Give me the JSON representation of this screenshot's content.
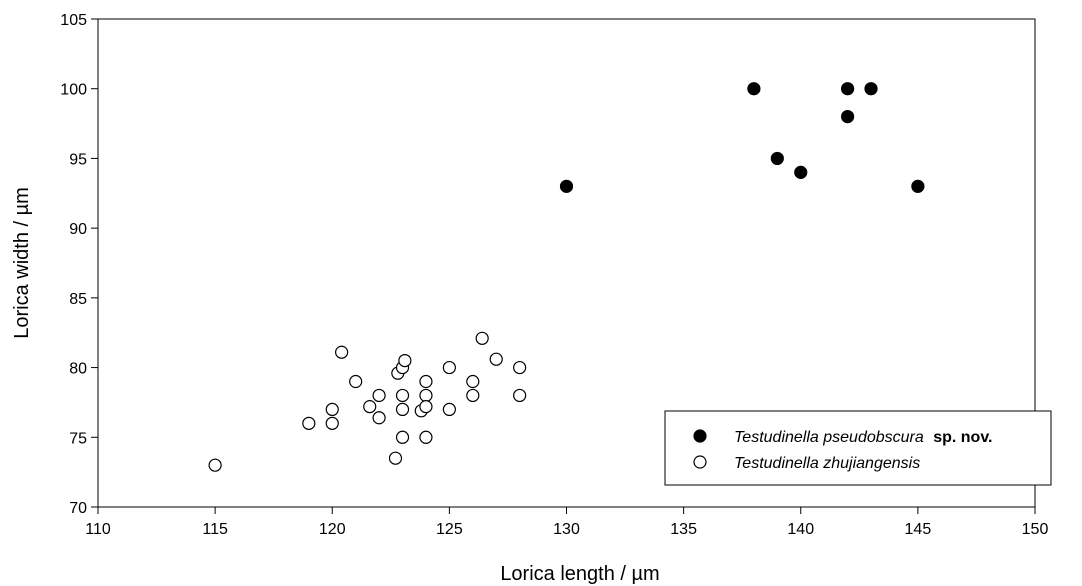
{
  "chart_data": {
    "type": "scatter",
    "xlabel": "Lorica length / µm",
    "ylabel": "Lorica width / µm",
    "xlim": [
      110,
      150
    ],
    "ylim": [
      70,
      105
    ],
    "xticks": [
      110,
      115,
      120,
      125,
      130,
      135,
      140,
      145,
      150
    ],
    "yticks": [
      70,
      75,
      80,
      85,
      90,
      95,
      100,
      105
    ],
    "grid": false,
    "legend_position": "bottom-right",
    "series": [
      {
        "name": "Testudinella pseudobscura sp. nov.",
        "name_italic": "Testudinella pseudobscura",
        "name_bold": "sp. nov.",
        "marker": "filled-circle",
        "color": "#000000",
        "points": [
          {
            "x": 130,
            "y": 93
          },
          {
            "x": 138,
            "y": 100
          },
          {
            "x": 139,
            "y": 95
          },
          {
            "x": 140,
            "y": 94
          },
          {
            "x": 142,
            "y": 100
          },
          {
            "x": 142,
            "y": 98
          },
          {
            "x": 143,
            "y": 100
          },
          {
            "x": 145,
            "y": 93
          }
        ]
      },
      {
        "name": "Testudinella zhujiangensis",
        "name_italic": "Testudinella zhujiangensis",
        "name_bold": "",
        "marker": "open-circle",
        "color": "#000000",
        "points": [
          {
            "x": 115,
            "y": 73
          },
          {
            "x": 119,
            "y": 76
          },
          {
            "x": 120,
            "y": 77
          },
          {
            "x": 120,
            "y": 76
          },
          {
            "x": 120.4,
            "y": 81.1
          },
          {
            "x": 121,
            "y": 79
          },
          {
            "x": 121.6,
            "y": 77.2
          },
          {
            "x": 122,
            "y": 78
          },
          {
            "x": 122,
            "y": 76.4
          },
          {
            "x": 122.7,
            "y": 73.5
          },
          {
            "x": 122.8,
            "y": 79.6
          },
          {
            "x": 123,
            "y": 80
          },
          {
            "x": 123.1,
            "y": 80.5
          },
          {
            "x": 123,
            "y": 78
          },
          {
            "x": 123,
            "y": 77
          },
          {
            "x": 123,
            "y": 75
          },
          {
            "x": 123.8,
            "y": 76.9
          },
          {
            "x": 124,
            "y": 79
          },
          {
            "x": 124,
            "y": 78
          },
          {
            "x": 124,
            "y": 77.2
          },
          {
            "x": 124,
            "y": 75
          },
          {
            "x": 125,
            "y": 80
          },
          {
            "x": 125,
            "y": 77
          },
          {
            "x": 126,
            "y": 79
          },
          {
            "x": 126,
            "y": 78
          },
          {
            "x": 126.4,
            "y": 82.1
          },
          {
            "x": 127,
            "y": 80.6
          },
          {
            "x": 128,
            "y": 80
          },
          {
            "x": 128,
            "y": 78
          }
        ]
      }
    ]
  }
}
